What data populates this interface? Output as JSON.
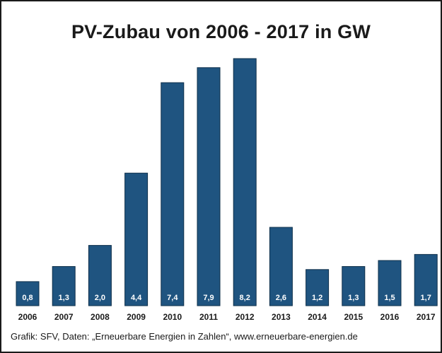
{
  "chart_data": {
    "type": "bar",
    "title": "PV-Zubau von 2006 - 2017 in GW",
    "categories": [
      "2006",
      "2007",
      "2008",
      "2009",
      "2010",
      "2011",
      "2012",
      "2013",
      "2014",
      "2015",
      "2016",
      "2017"
    ],
    "values": [
      0.8,
      1.3,
      2.0,
      4.4,
      7.4,
      7.9,
      8.2,
      2.6,
      1.2,
      1.3,
      1.5,
      1.7
    ],
    "value_labels": [
      "0,8",
      "1,3",
      "2,0",
      "4,4",
      "7,4",
      "7,9",
      "8,2",
      "2,6",
      "1,2",
      "1,3",
      "1,5",
      "1,7"
    ],
    "xlabel": "",
    "ylabel": "",
    "ylim": [
      0,
      8.2
    ],
    "grid": false,
    "bar_color": "#1f5480"
  },
  "footer": {
    "source": "Grafik: SFV, Daten: „Erneuerbare Energien in Zahlen“, www.erneuerbare-energien.de"
  }
}
